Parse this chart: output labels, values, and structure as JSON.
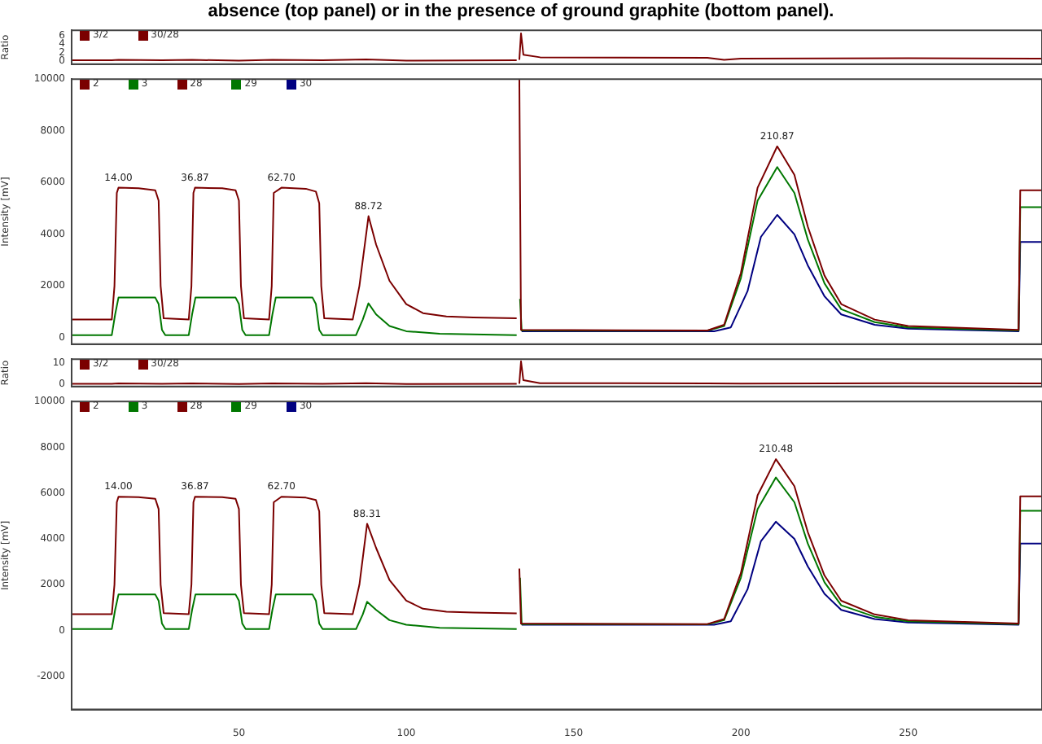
{
  "chart_data": [
    {
      "type": "line",
      "title": "absence (top panel) or in the presence of ground graphite (bottom panel).",
      "ylabel": "Ratio",
      "xlim": [
        0,
        290
      ],
      "ylim": [
        -0.7,
        7.2
      ],
      "yticks": [
        0,
        2,
        4,
        6
      ],
      "tick_labels": "y",
      "legend": "top left",
      "marker": "none",
      "line_style": "solid",
      "series": [
        {
          "name": "3/2",
          "color": "#7b0000",
          "x": [
            0,
            12,
            14,
            27,
            36,
            50,
            60,
            75,
            88,
            100,
            133
          ],
          "values": [
            0.2,
            0.2,
            0.3,
            0.2,
            0.3,
            0.1,
            0.3,
            0.2,
            0.4,
            0.1,
            0.2
          ]
        },
        {
          "name": "30/28",
          "color": "#7b0000",
          "x": [
            133.8,
            134.3,
            135,
            140,
            190,
            195,
            200,
            250,
            290
          ],
          "values": [
            0.3,
            6.5,
            1.5,
            0.9,
            0.8,
            0.3,
            0.6,
            0.7,
            0.6
          ]
        }
      ]
    },
    {
      "type": "line",
      "ylabel": "Intensity [mV]",
      "xlim": [
        0,
        290
      ],
      "ylim": [
        -250,
        10000
      ],
      "yticks": [
        0,
        2000,
        4000,
        6000,
        8000,
        10000
      ],
      "tick_labels": "y",
      "legend": "top left",
      "marker": "none",
      "line_style": "solid",
      "annotations": [
        {
          "text": "14.00",
          "x": 14,
          "y": 5800
        },
        {
          "text": "36.87",
          "x": 36.87,
          "y": 5800
        },
        {
          "text": "62.70",
          "x": 62.7,
          "y": 5800
        },
        {
          "text": "88.72",
          "x": 88.72,
          "y": 4700
        },
        {
          "text": "210.87",
          "x": 210.87,
          "y": 7400
        }
      ],
      "series": [
        {
          "name": "2",
          "color": "#7b0000",
          "x": [
            0,
            12,
            12.8,
            13.5,
            14,
            20,
            25,
            26,
            26.6,
            27.5,
            35,
            35.8,
            36.4,
            36.87,
            45,
            49,
            50,
            50.6,
            51.5,
            59,
            59.8,
            60.4,
            62.7,
            70,
            73,
            74,
            74.6,
            75.5,
            84,
            86,
            88.72,
            91,
            95,
            100,
            105,
            112,
            120,
            133
          ],
          "values": [
            700,
            700,
            2000,
            5600,
            5800,
            5780,
            5700,
            5300,
            2000,
            750,
            700,
            2000,
            5600,
            5800,
            5780,
            5700,
            5300,
            2000,
            750,
            700,
            2000,
            5600,
            5800,
            5760,
            5650,
            5200,
            2000,
            750,
            700,
            2000,
            4700,
            3600,
            2200,
            1300,
            950,
            820,
            780,
            750
          ]
        },
        {
          "name": "3",
          "color": "#007700",
          "x": [
            0,
            12,
            13,
            14,
            25,
            26,
            27,
            28,
            35,
            36,
            37,
            49,
            50,
            51,
            52,
            59,
            60,
            61,
            72,
            73,
            74,
            75,
            85,
            87,
            88.7,
            91,
            95,
            100,
            110,
            133
          ],
          "values": [
            100,
            100,
            900,
            1550,
            1550,
            1300,
            300,
            100,
            100,
            900,
            1550,
            1550,
            1300,
            300,
            100,
            100,
            900,
            1550,
            1550,
            1300,
            300,
            100,
            100,
            700,
            1330,
            900,
            450,
            250,
            150,
            100
          ]
        },
        {
          "name": "28",
          "color": "#7b0000",
          "x": [
            133.8,
            134.3,
            190,
            195,
            200,
            205,
            210.87,
            216,
            220,
            225,
            230,
            240,
            250,
            283,
            283.5,
            290
          ],
          "values": [
            10000,
            300,
            280,
            500,
            2500,
            5800,
            7400,
            6300,
            4300,
            2400,
            1300,
            700,
            450,
            300,
            5700,
            5700
          ]
        },
        {
          "name": "29",
          "color": "#007700",
          "x": [
            134,
            134.5,
            190,
            195,
            200,
            205,
            210.87,
            216,
            220,
            225,
            230,
            240,
            250,
            283,
            283.5,
            290
          ],
          "values": [
            1500,
            280,
            270,
            450,
            2300,
            5300,
            6600,
            5600,
            3800,
            2100,
            1100,
            600,
            400,
            280,
            5050,
            5050
          ]
        },
        {
          "name": "30",
          "color": "#000080",
          "x": [
            134.5,
            192,
            197,
            202,
            206,
            210.87,
            216,
            220,
            225,
            230,
            240,
            250,
            283,
            283.5,
            290
          ],
          "values": [
            250,
            250,
            400,
            1800,
            3900,
            4750,
            4000,
            2800,
            1600,
            900,
            500,
            350,
            250,
            3700,
            3700
          ]
        }
      ]
    },
    {
      "type": "line",
      "ylabel": "Ratio",
      "xlim": [
        0,
        290
      ],
      "ylim": [
        -1,
        12
      ],
      "yticks": [
        0,
        10
      ],
      "tick_labels": "y",
      "legend": "top left",
      "marker": "none",
      "line_style": "solid",
      "series": [
        {
          "name": "3/2",
          "color": "#7b0000",
          "x": [
            0,
            12,
            14,
            27,
            36,
            50,
            60,
            75,
            88,
            100,
            133
          ],
          "values": [
            0.3,
            0.3,
            0.5,
            0.3,
            0.5,
            0.2,
            0.5,
            0.3,
            0.6,
            0.2,
            0.3
          ]
        },
        {
          "name": "30/28",
          "color": "#7b0000",
          "x": [
            133.8,
            134.3,
            135,
            140,
            190,
            200,
            250,
            290
          ],
          "values": [
            0.3,
            11,
            2,
            0.6,
            0.5,
            0.4,
            0.6,
            0.5
          ]
        }
      ]
    },
    {
      "type": "line",
      "ylabel": "Intensity [mV]",
      "xlim": [
        0,
        290
      ],
      "ylim": [
        -3450,
        10000
      ],
      "xticks": [
        50,
        100,
        150,
        200,
        250
      ],
      "yticks": [
        -2000,
        0,
        2000,
        4000,
        6000,
        8000,
        10000
      ],
      "legend": "top left",
      "marker": "none",
      "line_style": "solid",
      "annotations": [
        {
          "text": "14.00",
          "x": 14,
          "y": 5840
        },
        {
          "text": "36.87",
          "x": 36.87,
          "y": 5840
        },
        {
          "text": "62.70",
          "x": 62.7,
          "y": 5840
        },
        {
          "text": "88.31",
          "x": 88.31,
          "y": 4660
        },
        {
          "text": "210.48",
          "x": 210.48,
          "y": 7480
        }
      ],
      "series": [
        {
          "name": "2",
          "color": "#7b0000",
          "x": [
            0,
            12,
            12.8,
            13.5,
            14,
            20,
            25,
            26,
            26.6,
            27.5,
            35,
            35.8,
            36.4,
            36.87,
            45,
            49,
            50,
            50.6,
            51.5,
            59,
            59.8,
            60.4,
            62.7,
            70,
            73,
            74,
            74.6,
            75.5,
            84,
            86,
            88.31,
            91,
            95,
            100,
            105,
            112,
            120,
            133
          ],
          "values": [
            710,
            710,
            2000,
            5600,
            5840,
            5820,
            5750,
            5300,
            2000,
            760,
            710,
            2000,
            5600,
            5840,
            5820,
            5750,
            5300,
            2000,
            760,
            710,
            2000,
            5600,
            5840,
            5800,
            5700,
            5200,
            2000,
            760,
            710,
            2000,
            4660,
            3600,
            2200,
            1300,
            950,
            820,
            780,
            750
          ]
        },
        {
          "name": "3",
          "color": "#007700",
          "x": [
            0,
            12,
            13,
            14,
            25,
            26,
            27,
            28,
            35,
            36,
            37,
            49,
            50,
            51,
            52,
            59,
            60,
            61,
            72,
            73,
            74,
            75,
            85,
            87,
            88.3,
            91,
            95,
            100,
            110,
            133
          ],
          "values": [
            60,
            60,
            900,
            1570,
            1570,
            1300,
            300,
            60,
            60,
            900,
            1570,
            1570,
            1300,
            300,
            60,
            60,
            900,
            1570,
            1570,
            1300,
            300,
            60,
            60,
            700,
            1250,
            900,
            450,
            250,
            120,
            60
          ]
        },
        {
          "name": "28",
          "color": "#7b0000",
          "x": [
            133.8,
            134.3,
            190,
            195,
            200,
            205,
            210.48,
            216,
            220,
            225,
            230,
            240,
            250,
            283,
            283.5,
            290
          ],
          "values": [
            2700,
            300,
            280,
            500,
            2500,
            5900,
            7480,
            6300,
            4300,
            2400,
            1300,
            700,
            450,
            300,
            5860,
            5860
          ]
        },
        {
          "name": "29",
          "color": "#007700",
          "x": [
            134,
            134.5,
            190,
            195,
            200,
            205,
            210.48,
            216,
            220,
            225,
            230,
            240,
            250,
            283,
            283.5,
            290
          ],
          "values": [
            2300,
            280,
            270,
            450,
            2300,
            5300,
            6680,
            5600,
            3800,
            2100,
            1100,
            600,
            400,
            280,
            5230,
            5230
          ]
        },
        {
          "name": "30",
          "color": "#000080",
          "x": [
            134.5,
            192,
            197,
            202,
            206,
            210.48,
            216,
            220,
            225,
            230,
            240,
            250,
            283,
            283.5,
            290
          ],
          "values": [
            250,
            250,
            400,
            1800,
            3900,
            4750,
            4000,
            2800,
            1600,
            900,
            500,
            350,
            250,
            3800,
            3800
          ]
        }
      ]
    }
  ]
}
